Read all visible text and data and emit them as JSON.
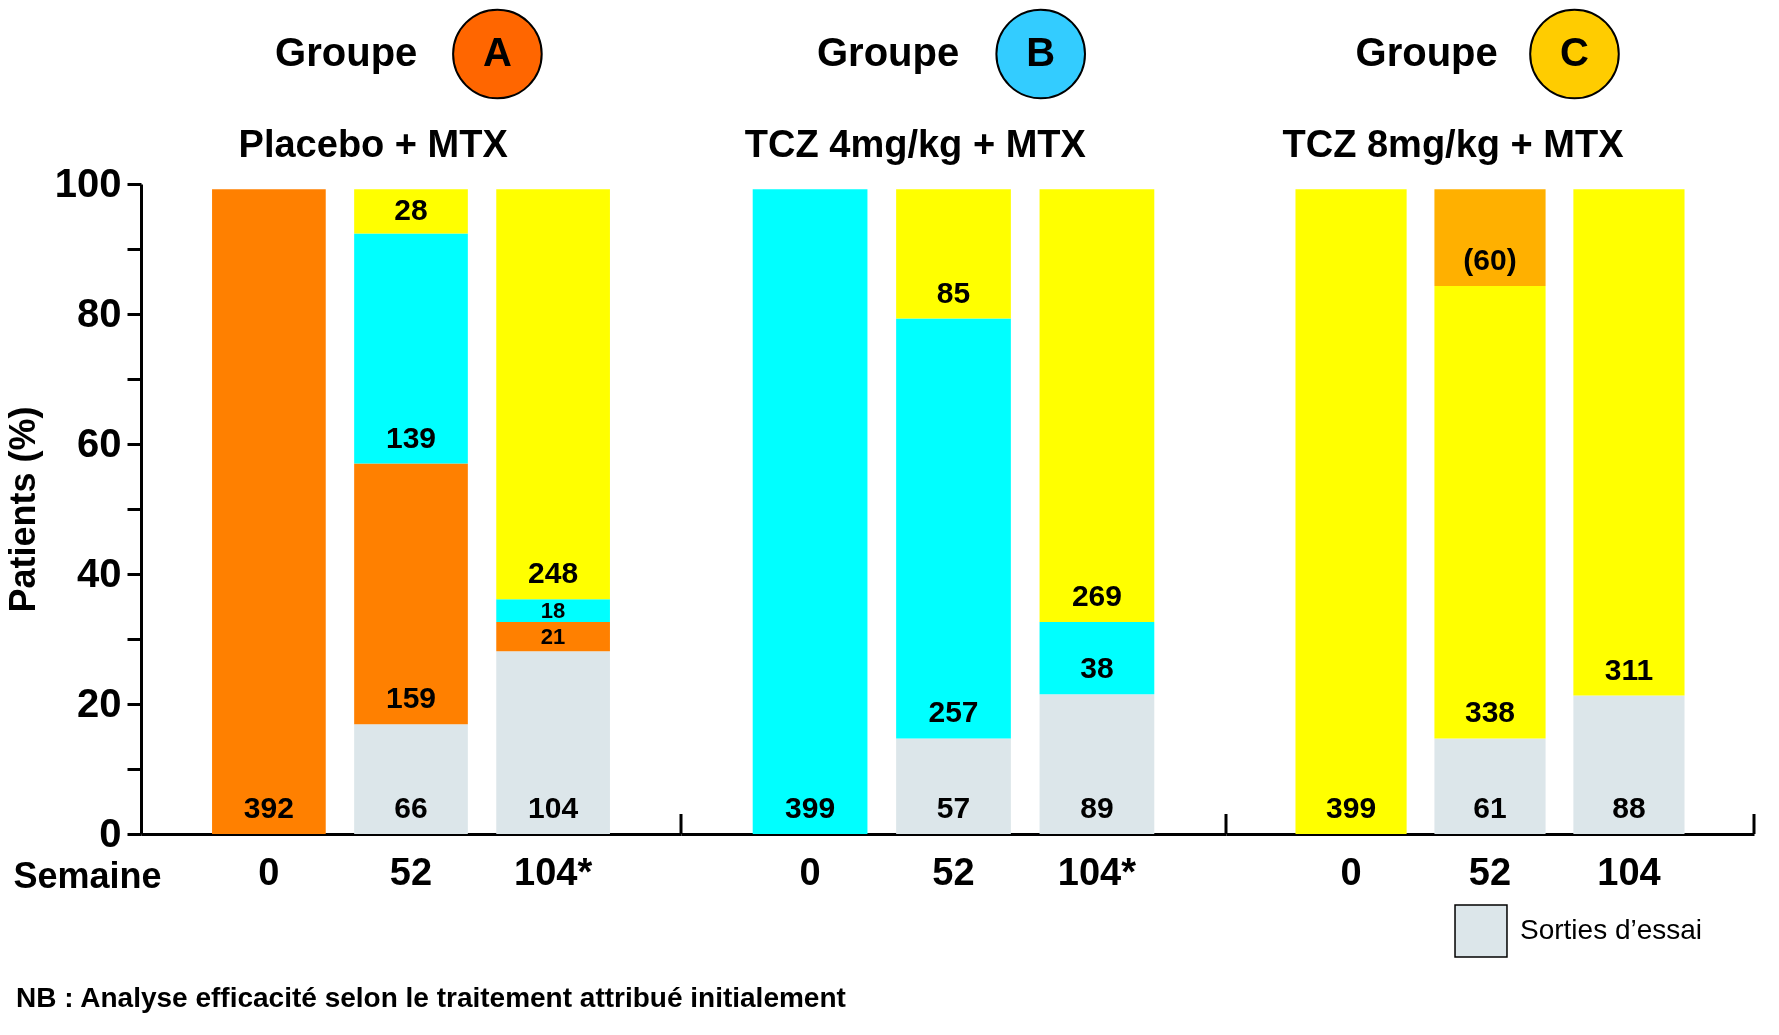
{
  "chart_data": [
    {
      "type": "bar",
      "title": "Groupe",
      "subtitle": "Placebo + MTX",
      "xlabel": "Semaine",
      "ylabel": "Patients (%)",
      "annotations": [
        "A",
        "392",
        "66",
        "159",
        "139",
        "28",
        "104",
        "21",
        "18",
        "248",
        "NB : Analyse efficacité selon le traitement attribué initialement"
      ],
      "categories": [
        "0",
        "52",
        "104*"
      ],
      "stacked": true,
      "ylim": [
        0,
        100
      ],
      "yticks": [
        0,
        {
          "value": 10,
          "label": null
        },
        20,
        {
          "value": 30,
          "label": null
        },
        40,
        {
          "value": 50,
          "label": null
        },
        60,
        {
          "value": 70,
          "label": null
        },
        80,
        {
          "value": 90,
          "label": null
        },
        100
      ],
      "series": [
        {
          "color": "#dce6ea",
          "values": [
            null,
            16.9,
            28.1
          ]
        },
        {
          "color": "#ff8000",
          "values": [
            99.2,
            40.1,
            4.5
          ]
        },
        {
          "color": "#00ffff",
          "values": [
            null,
            35.4,
            3.5
          ]
        },
        {
          "color": "#ffff00",
          "values": [
            null,
            6.8,
            63.1
          ]
        }
      ]
    },
    {
      "type": "bar",
      "title": "Groupe",
      "subtitle": "TCZ 4mg/kg + MTX",
      "tick_labels": "x",
      "annotations": [
        "B",
        "399",
        "57",
        "257",
        "85",
        "89",
        "38",
        "269"
      ],
      "categories": [
        "0",
        "52",
        "104*"
      ],
      "stacked": true,
      "ylim": [
        0,
        100
      ],
      "series": [
        {
          "color": "#dce6ea",
          "values": [
            null,
            14.7,
            21.5
          ]
        },
        {
          "color": "#00ffff",
          "values": [
            99.2,
            64.6,
            11.1
          ]
        },
        {
          "color": "#ffff00",
          "values": [
            null,
            19.9,
            66.6
          ]
        }
      ]
    },
    {
      "type": "bar",
      "title": "Groupe",
      "subtitle": "TCZ 8mg/kg + MTX",
      "tick_labels": "x",
      "legend": "bottom right",
      "annotations": [
        "C",
        "399",
        "61",
        "338",
        "(60)",
        "88",
        "311"
      ],
      "categories": [
        "0",
        "52",
        "104"
      ],
      "stacked": true,
      "ylim": [
        0,
        100
      ],
      "series": [
        {
          "name": "Sorties d’essai",
          "color": "#dce6ea",
          "values": [
            null,
            14.7,
            21.3
          ]
        },
        {
          "color": "#ffff00",
          "values": [
            99.2,
            69.6,
            77.9
          ]
        },
        {
          "color": "#ffb000",
          "values": [
            null,
            14.9,
            null
          ]
        }
      ]
    }
  ]
}
